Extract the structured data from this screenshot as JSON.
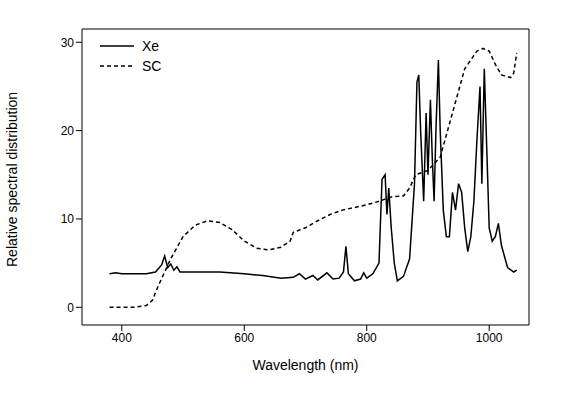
{
  "chart_data": {
    "type": "line",
    "xlabel": "Wavelength (nm)",
    "ylabel": "Relative spectral distribution",
    "xlim": [
      335,
      1065
    ],
    "xticks": [
      400,
      600,
      800,
      1000
    ],
    "ylim": [
      -2,
      31.5
    ],
    "yticks": [
      0,
      10,
      20,
      30
    ],
    "grid": false,
    "legend": "upper left",
    "series": [
      {
        "name": "Xe",
        "color": "#000000",
        "line_style": "solid",
        "x": [
          380,
          390,
          400,
          420,
          440,
          455,
          460,
          465,
          470,
          475,
          480,
          485,
          490,
          495,
          520,
          560,
          600,
          630,
          660,
          680,
          690,
          700,
          712,
          720,
          735,
          745,
          755,
          762,
          766,
          770,
          780,
          790,
          795,
          800,
          810,
          820,
          825,
          830,
          833,
          836,
          840,
          845,
          850,
          860,
          870,
          878,
          882,
          885,
          888,
          893,
          897,
          900,
          904,
          907,
          910,
          913,
          917,
          920,
          925,
          930,
          935,
          940,
          945,
          950,
          955,
          960,
          965,
          970,
          975,
          980,
          985,
          988,
          992,
          996,
          1000,
          1005,
          1010,
          1015,
          1020,
          1030,
          1040,
          1045
        ],
        "values": [
          3.8,
          3.9,
          3.8,
          3.8,
          3.8,
          4.0,
          4.4,
          4.8,
          5.8,
          4.5,
          4.9,
          4.2,
          4.6,
          4.0,
          4.0,
          4.0,
          3.8,
          3.6,
          3.3,
          3.4,
          3.8,
          3.2,
          3.6,
          3.1,
          3.9,
          3.2,
          3.3,
          4.0,
          6.9,
          3.8,
          3.0,
          3.2,
          3.9,
          3.3,
          3.8,
          5.0,
          14.5,
          15.0,
          10.5,
          13.5,
          9.0,
          5.0,
          3.0,
          3.5,
          5.5,
          14.0,
          25.5,
          26.3,
          20.0,
          12.0,
          22.0,
          15.0,
          23.5,
          17.0,
          12.0,
          20.0,
          28.0,
          20.0,
          11.0,
          8.0,
          8.0,
          13.0,
          11.0,
          14.0,
          13.0,
          9.0,
          6.3,
          8.0,
          12.0,
          19.0,
          25.0,
          14.0,
          27.0,
          18.0,
          9.0,
          7.5,
          8.0,
          9.5,
          7.0,
          4.5,
          4.0,
          4.2
        ]
      },
      {
        "name": "SC",
        "color": "#000000",
        "line_style": "dashed",
        "x": [
          380,
          420,
          440,
          450,
          460,
          480,
          500,
          520,
          540,
          560,
          580,
          600,
          620,
          640,
          660,
          675,
          680,
          700,
          720,
          740,
          760,
          780,
          800,
          820,
          840,
          860,
          870,
          880,
          900,
          920,
          940,
          960,
          980,
          990,
          1000,
          1010,
          1020,
          1035,
          1040,
          1045
        ],
        "values": [
          0,
          0,
          0.2,
          0.8,
          2.5,
          5.5,
          8.0,
          9.3,
          9.8,
          9.6,
          8.8,
          7.5,
          6.7,
          6.5,
          6.8,
          7.5,
          8.5,
          9.0,
          9.8,
          10.5,
          11.0,
          11.3,
          11.6,
          12.0,
          12.5,
          12.6,
          13.5,
          15.0,
          15.5,
          17.0,
          22.0,
          27.0,
          29.0,
          29.3,
          29.0,
          27.5,
          26.3,
          26.0,
          26.5,
          28.8
        ]
      }
    ]
  }
}
